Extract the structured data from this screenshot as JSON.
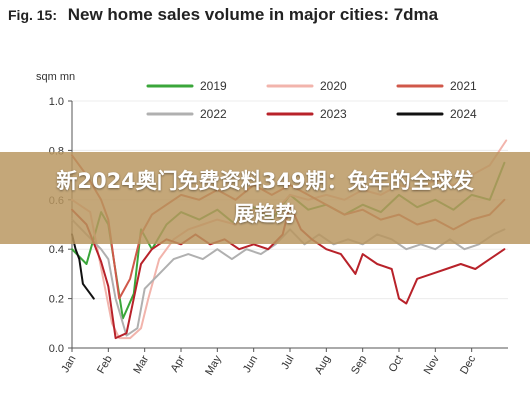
{
  "header": {
    "fig_label": "Fig. 15:",
    "title": "New home sales volume in major cities: 7dma"
  },
  "overlay": {
    "text": "新2024奥门免费资料349期：兔年的全球发展趋势"
  },
  "colors": {
    "2019": "#3aa63a",
    "2020": "#f2b4ac",
    "2021": "#d0584a",
    "2022": "#b0b0b0",
    "2023": "#b8222a",
    "2024": "#111111",
    "overlay": "#b9965f"
  },
  "chart_data": {
    "type": "line",
    "ylabel": "sqm mn",
    "ylim": [
      0,
      1.0
    ],
    "yticks": [
      "0.0",
      "0.2",
      "0.4",
      "0.6",
      "0.8",
      "1.0"
    ],
    "x_categories": [
      "Jan",
      "Feb",
      "Mar",
      "Apr",
      "May",
      "Jun",
      "Jul",
      "Aug",
      "Sep",
      "Oct",
      "Nov",
      "Dec"
    ],
    "x_unit": "month (1 = start of Jan, 13 = end of Dec)",
    "series": [
      {
        "name": "2019",
        "points": [
          [
            1.0,
            0.4
          ],
          [
            1.4,
            0.34
          ],
          [
            1.8,
            0.55
          ],
          [
            2.0,
            0.5
          ],
          [
            2.4,
            0.12
          ],
          [
            2.7,
            0.22
          ],
          [
            2.9,
            0.48
          ],
          [
            3.2,
            0.4
          ],
          [
            3.6,
            0.5
          ],
          [
            4.0,
            0.55
          ],
          [
            4.5,
            0.52
          ],
          [
            5.0,
            0.56
          ],
          [
            5.5,
            0.5
          ],
          [
            6.0,
            0.57
          ],
          [
            6.5,
            0.52
          ],
          [
            7.0,
            0.62
          ],
          [
            7.5,
            0.56
          ],
          [
            8.0,
            0.58
          ],
          [
            8.5,
            0.54
          ],
          [
            9.0,
            0.58
          ],
          [
            9.5,
            0.55
          ],
          [
            10.0,
            0.62
          ],
          [
            10.5,
            0.57
          ],
          [
            11.0,
            0.6
          ],
          [
            11.5,
            0.56
          ],
          [
            12.0,
            0.62
          ],
          [
            12.5,
            0.6
          ],
          [
            12.9,
            0.75
          ]
        ]
      },
      {
        "name": "2020",
        "points": [
          [
            1.0,
            0.6
          ],
          [
            1.5,
            0.55
          ],
          [
            1.9,
            0.25
          ],
          [
            2.1,
            0.1
          ],
          [
            2.3,
            0.04
          ],
          [
            2.6,
            0.04
          ],
          [
            2.9,
            0.08
          ],
          [
            3.1,
            0.2
          ],
          [
            3.4,
            0.36
          ],
          [
            3.8,
            0.44
          ],
          [
            4.2,
            0.48
          ],
          [
            4.6,
            0.5
          ],
          [
            5.0,
            0.52
          ],
          [
            5.5,
            0.5
          ],
          [
            6.0,
            0.56
          ],
          [
            6.5,
            0.54
          ],
          [
            7.0,
            0.62
          ],
          [
            7.5,
            0.6
          ],
          [
            8.0,
            0.62
          ],
          [
            8.5,
            0.6
          ],
          [
            9.0,
            0.64
          ],
          [
            9.5,
            0.62
          ],
          [
            10.0,
            0.66
          ],
          [
            10.5,
            0.64
          ],
          [
            11.0,
            0.68
          ],
          [
            11.5,
            0.66
          ],
          [
            12.0,
            0.7
          ],
          [
            12.5,
            0.74
          ],
          [
            12.95,
            0.84
          ]
        ]
      },
      {
        "name": "2021",
        "points": [
          [
            1.0,
            0.78
          ],
          [
            1.4,
            0.7
          ],
          [
            1.8,
            0.6
          ],
          [
            2.0,
            0.52
          ],
          [
            2.3,
            0.2
          ],
          [
            2.6,
            0.28
          ],
          [
            2.9,
            0.46
          ],
          [
            3.2,
            0.54
          ],
          [
            3.6,
            0.58
          ],
          [
            4.0,
            0.62
          ],
          [
            4.5,
            0.6
          ],
          [
            5.0,
            0.64
          ],
          [
            5.5,
            0.6
          ],
          [
            6.0,
            0.66
          ],
          [
            6.5,
            0.62
          ],
          [
            7.0,
            0.66
          ],
          [
            7.5,
            0.62
          ],
          [
            8.0,
            0.58
          ],
          [
            8.5,
            0.54
          ],
          [
            9.0,
            0.56
          ],
          [
            9.5,
            0.52
          ],
          [
            10.0,
            0.54
          ],
          [
            10.5,
            0.5
          ],
          [
            11.0,
            0.52
          ],
          [
            11.5,
            0.48
          ],
          [
            12.0,
            0.52
          ],
          [
            12.5,
            0.54
          ],
          [
            12.9,
            0.6
          ]
        ]
      },
      {
        "name": "2022",
        "points": [
          [
            1.0,
            0.52
          ],
          [
            1.4,
            0.46
          ],
          [
            1.8,
            0.4
          ],
          [
            2.0,
            0.36
          ],
          [
            2.2,
            0.2
          ],
          [
            2.5,
            0.05
          ],
          [
            2.8,
            0.08
          ],
          [
            3.0,
            0.24
          ],
          [
            3.4,
            0.3
          ],
          [
            3.8,
            0.36
          ],
          [
            4.2,
            0.38
          ],
          [
            4.6,
            0.36
          ],
          [
            5.0,
            0.4
          ],
          [
            5.4,
            0.36
          ],
          [
            5.8,
            0.4
          ],
          [
            6.2,
            0.38
          ],
          [
            6.6,
            0.42
          ],
          [
            7.0,
            0.48
          ],
          [
            7.4,
            0.42
          ],
          [
            7.8,
            0.46
          ],
          [
            8.2,
            0.42
          ],
          [
            8.6,
            0.44
          ],
          [
            9.0,
            0.42
          ],
          [
            9.4,
            0.46
          ],
          [
            9.8,
            0.44
          ],
          [
            10.2,
            0.4
          ],
          [
            10.6,
            0.42
          ],
          [
            11.0,
            0.4
          ],
          [
            11.4,
            0.44
          ],
          [
            11.8,
            0.4
          ],
          [
            12.2,
            0.42
          ],
          [
            12.6,
            0.46
          ],
          [
            12.9,
            0.48
          ]
        ]
      },
      {
        "name": "2023",
        "points": [
          [
            1.0,
            0.56
          ],
          [
            1.4,
            0.5
          ],
          [
            1.8,
            0.35
          ],
          [
            2.0,
            0.25
          ],
          [
            2.2,
            0.04
          ],
          [
            2.5,
            0.06
          ],
          [
            2.9,
            0.34
          ],
          [
            3.2,
            0.4
          ],
          [
            3.6,
            0.44
          ],
          [
            4.0,
            0.42
          ],
          [
            4.4,
            0.46
          ],
          [
            4.8,
            0.42
          ],
          [
            5.2,
            0.44
          ],
          [
            5.6,
            0.4
          ],
          [
            6.0,
            0.42
          ],
          [
            6.4,
            0.4
          ],
          [
            6.8,
            0.46
          ],
          [
            7.0,
            0.58
          ],
          [
            7.3,
            0.48
          ],
          [
            7.6,
            0.44
          ],
          [
            8.0,
            0.4
          ],
          [
            8.4,
            0.38
          ],
          [
            8.8,
            0.3
          ],
          [
            9.0,
            0.38
          ],
          [
            9.4,
            0.34
          ],
          [
            9.8,
            0.32
          ],
          [
            10.0,
            0.2
          ],
          [
            10.2,
            0.18
          ],
          [
            10.5,
            0.28
          ],
          [
            10.9,
            0.3
          ],
          [
            11.3,
            0.32
          ],
          [
            11.7,
            0.34
          ],
          [
            12.1,
            0.32
          ],
          [
            12.5,
            0.36
          ],
          [
            12.9,
            0.4
          ]
        ]
      },
      {
        "name": "2024",
        "points": [
          [
            1.0,
            0.46
          ],
          [
            1.1,
            0.4
          ],
          [
            1.2,
            0.36
          ],
          [
            1.3,
            0.26
          ],
          [
            1.4,
            0.24
          ],
          [
            1.5,
            0.22
          ],
          [
            1.6,
            0.2
          ]
        ]
      }
    ],
    "legend": {
      "placement": "top",
      "columns": 3,
      "entries": [
        "2019",
        "2020",
        "2021",
        "2022",
        "2023",
        "2024"
      ]
    }
  }
}
